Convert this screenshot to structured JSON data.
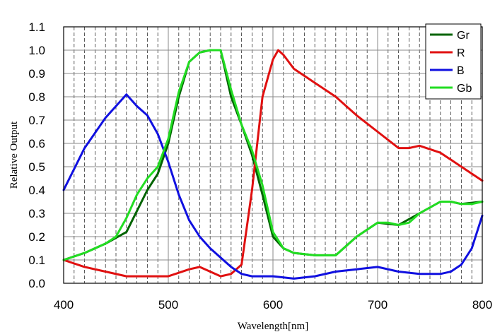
{
  "chart_data": {
    "type": "line",
    "xlabel": "Wavelength[nm]",
    "ylabel": "Relative Output",
    "xlim": [
      400,
      800
    ],
    "ylim": [
      0.0,
      1.1
    ],
    "x_ticks": [
      400,
      500,
      600,
      700,
      800
    ],
    "x_tick_labels": [
      "400",
      "500",
      "600",
      "700",
      "800"
    ],
    "y_ticks": [
      0.0,
      0.1,
      0.2,
      0.3,
      0.4,
      0.5,
      0.6,
      0.7,
      0.8,
      0.9,
      1.0,
      1.1
    ],
    "y_tick_labels": [
      "0.0",
      "0.1",
      "0.2",
      "0.3",
      "0.4",
      "0.5",
      "0.6",
      "0.7",
      "0.8",
      "0.9",
      "1.0",
      "1.1"
    ],
    "grid": true,
    "legend_position": "top-right",
    "series": [
      {
        "name": "Gr",
        "color": "#006400",
        "x": [
          400,
          420,
          440,
          460,
          480,
          490,
          500,
          510,
          520,
          530,
          540,
          550,
          560,
          570,
          580,
          590,
          600,
          610,
          620,
          640,
          660,
          680,
          700,
          720,
          740,
          760,
          770,
          780,
          800
        ],
        "y": [
          0.1,
          0.13,
          0.17,
          0.22,
          0.4,
          0.47,
          0.6,
          0.8,
          0.95,
          0.99,
          1.0,
          1.0,
          0.8,
          0.68,
          0.55,
          0.38,
          0.2,
          0.15,
          0.13,
          0.12,
          0.12,
          0.2,
          0.26,
          0.25,
          0.3,
          0.35,
          0.35,
          0.34,
          0.35
        ]
      },
      {
        "name": "R",
        "color": "#e01010",
        "x": [
          400,
          420,
          440,
          460,
          480,
          500,
          520,
          530,
          540,
          550,
          560,
          570,
          580,
          590,
          600,
          605,
          610,
          620,
          640,
          660,
          680,
          700,
          720,
          730,
          740,
          760,
          780,
          800
        ],
        "y": [
          0.1,
          0.07,
          0.05,
          0.03,
          0.03,
          0.03,
          0.06,
          0.07,
          0.05,
          0.03,
          0.04,
          0.08,
          0.4,
          0.8,
          0.96,
          1.0,
          0.98,
          0.92,
          0.86,
          0.8,
          0.72,
          0.65,
          0.58,
          0.58,
          0.59,
          0.56,
          0.5,
          0.44
        ]
      },
      {
        "name": "B",
        "color": "#1010e0",
        "x": [
          400,
          420,
          440,
          450,
          460,
          470,
          480,
          490,
          500,
          510,
          520,
          530,
          540,
          560,
          570,
          580,
          600,
          620,
          640,
          660,
          680,
          700,
          720,
          740,
          760,
          770,
          780,
          790,
          800
        ],
        "y": [
          0.4,
          0.58,
          0.71,
          0.76,
          0.81,
          0.76,
          0.72,
          0.64,
          0.52,
          0.38,
          0.27,
          0.2,
          0.15,
          0.07,
          0.04,
          0.03,
          0.03,
          0.02,
          0.03,
          0.05,
          0.06,
          0.07,
          0.05,
          0.04,
          0.04,
          0.05,
          0.08,
          0.15,
          0.29
        ]
      },
      {
        "name": "Gb",
        "color": "#22dd22",
        "x": [
          400,
          420,
          440,
          450,
          460,
          470,
          480,
          490,
          500,
          510,
          520,
          530,
          540,
          545,
          550,
          560,
          570,
          580,
          590,
          600,
          610,
          620,
          640,
          660,
          680,
          700,
          710,
          720,
          730,
          740,
          760,
          770,
          780,
          790,
          800
        ],
        "y": [
          0.1,
          0.13,
          0.17,
          0.2,
          0.28,
          0.38,
          0.45,
          0.5,
          0.62,
          0.82,
          0.95,
          0.99,
          1.0,
          1.0,
          1.0,
          0.83,
          0.68,
          0.57,
          0.42,
          0.22,
          0.15,
          0.13,
          0.12,
          0.12,
          0.2,
          0.26,
          0.26,
          0.25,
          0.26,
          0.3,
          0.35,
          0.35,
          0.34,
          0.34,
          0.35
        ]
      }
    ]
  }
}
